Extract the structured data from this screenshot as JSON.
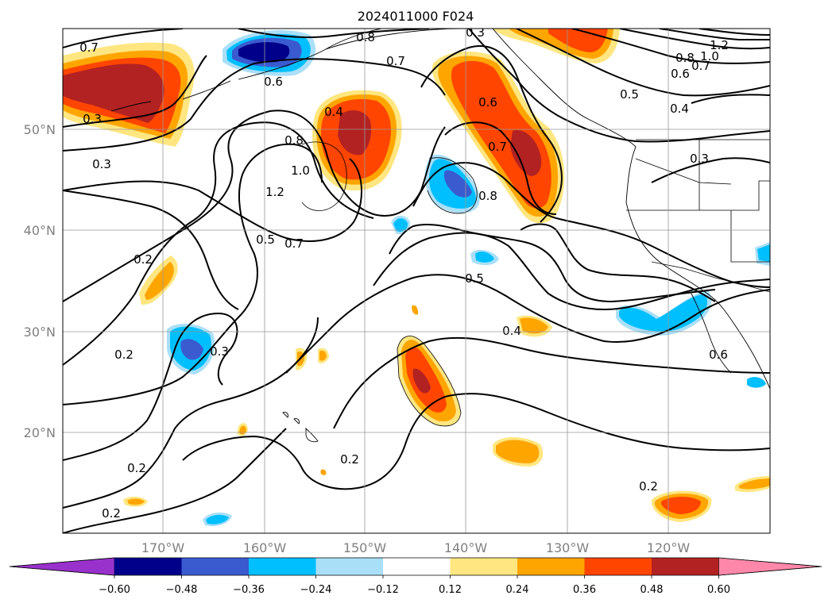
{
  "title": "2024011000 F024",
  "map": {
    "lon_range": [
      -180,
      -110
    ],
    "lat_range": [
      10,
      60
    ],
    "lon_ticks": [
      "170°W",
      "160°W",
      "150°W",
      "140°W",
      "130°W",
      "120°W"
    ],
    "lat_ticks": [
      "50°N",
      "40°N",
      "30°N",
      "20°N"
    ],
    "grid": true,
    "contour_labels": [
      "0.7",
      "0.8",
      "0.7",
      "0.6",
      "0.4",
      "0.5",
      "1.2",
      "0.8",
      "0.7",
      "0.6",
      "1.0",
      "0.3",
      "0.3",
      "0.8",
      "1.0",
      "0.4",
      "1.2",
      "0.6",
      "0.7",
      "0.8",
      "0.3",
      "0.5",
      "0.7",
      "0.2",
      "0.5",
      "0.2",
      "0.3",
      "0.4",
      "0.2",
      "0.2",
      "0.2",
      "0.6",
      "0.2",
      "0.3"
    ]
  },
  "colorbar": {
    "ticks": [
      "−0.60",
      "−0.48",
      "−0.36",
      "−0.24",
      "−0.12",
      "0.12",
      "0.24",
      "0.36",
      "0.48",
      "0.60"
    ],
    "colors": {
      "under": "#9932cc",
      "bins": [
        "#00008b",
        "#3a5bd0",
        "#00bfff",
        "#aadff8",
        "#ffffff",
        "#ffe680",
        "#ffa500",
        "#ff4500",
        "#b22222"
      ],
      "over": "#ff88aa"
    }
  }
}
